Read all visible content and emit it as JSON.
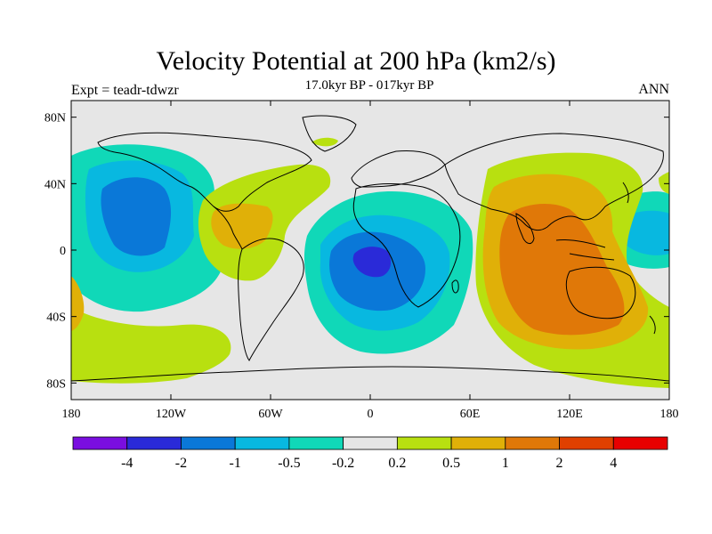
{
  "title": "Velocity Potential at 200 hPa (km2/s)",
  "subtitle": "17.0kyr BP - 017kyr BP",
  "left_label": "Expt = teadr-tdwzr",
  "right_label": "ANN",
  "map": {
    "lon_range": [
      -180,
      180
    ],
    "lat_range": [
      -90,
      90
    ],
    "lat_ticks": [
      {
        "value": 80,
        "label": "80N"
      },
      {
        "value": 40,
        "label": "40N"
      },
      {
        "value": 0,
        "label": "0"
      },
      {
        "value": -40,
        "label": "40S"
      },
      {
        "value": -80,
        "label": "80S"
      }
    ],
    "lon_ticks": [
      {
        "value": -180,
        "label": "180"
      },
      {
        "value": -120,
        "label": "120W"
      },
      {
        "value": -60,
        "label": "60W"
      },
      {
        "value": 0,
        "label": "0"
      },
      {
        "value": 60,
        "label": "60E"
      },
      {
        "value": 120,
        "label": "120E"
      },
      {
        "value": 180,
        "label": "180"
      }
    ]
  },
  "colorbar": {
    "colors": [
      "#7a0ee0",
      "#2a2ad8",
      "#0a78d8",
      "#08b8e0",
      "#10d8b8",
      "#e6e6e6",
      "#b8e010",
      "#e0b008",
      "#e07808",
      "#e04000",
      "#e80000"
    ],
    "labels": [
      "-4",
      "-2",
      "-1",
      "-0.5",
      "-0.2",
      "0.2",
      "0.5",
      "1",
      "2",
      "4"
    ]
  }
}
